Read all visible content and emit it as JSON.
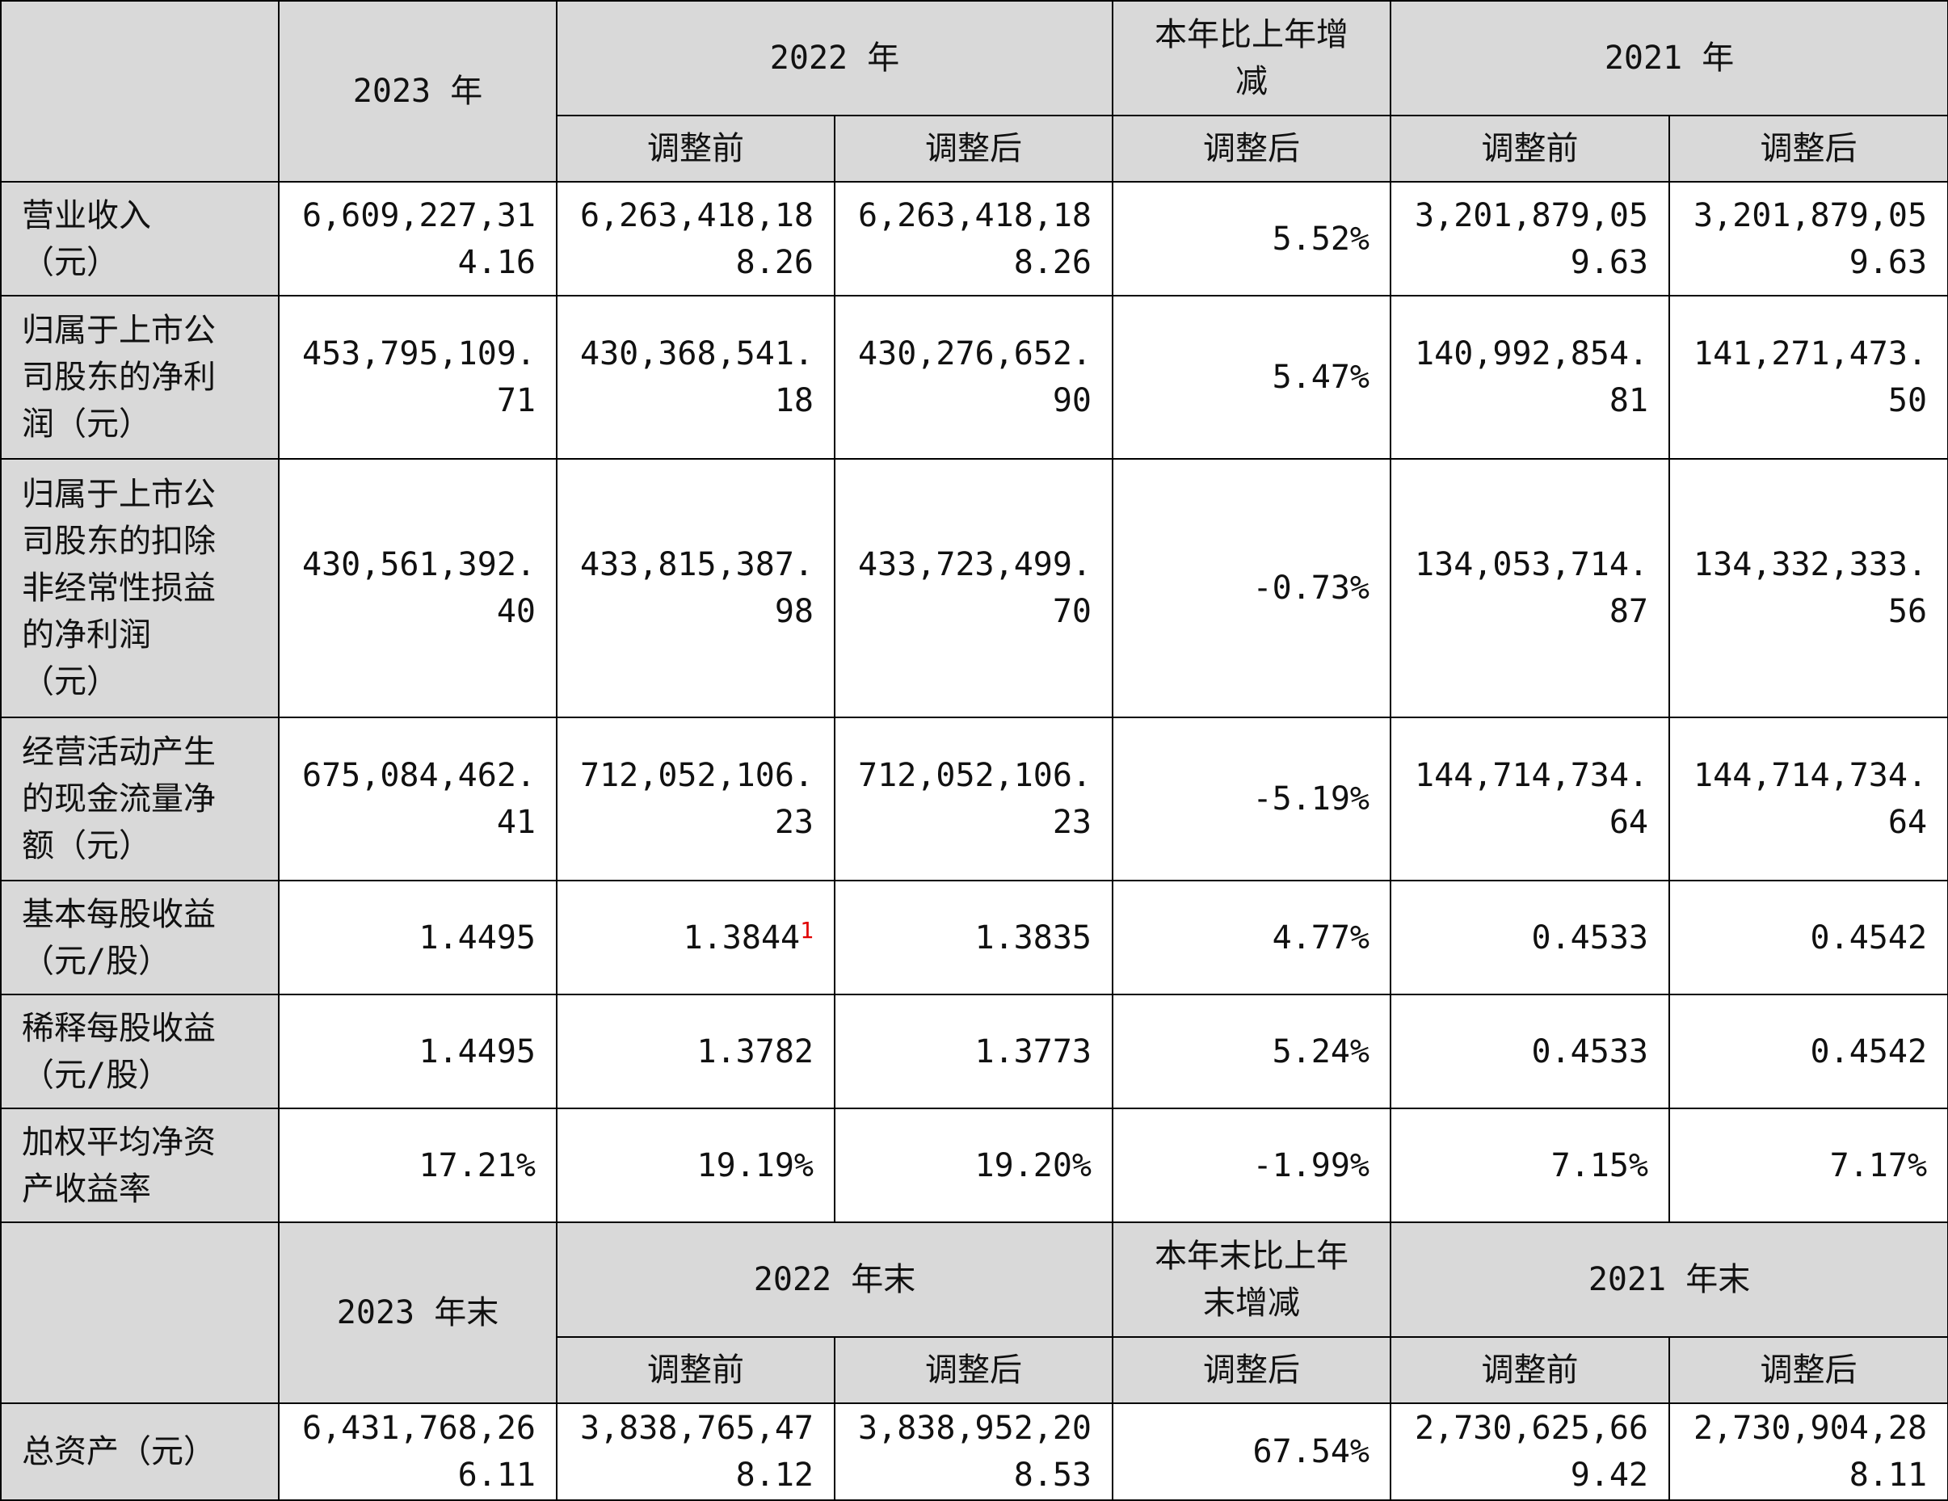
{
  "header_top": {
    "col_2023": "2023 年",
    "col_2022": "2022 年",
    "col_change": "本年比上年增\n减",
    "col_2021": "2021 年",
    "sub_before_2022": "调整前",
    "sub_after_2022": "调整后",
    "sub_change": "调整后",
    "sub_before_2021": "调整前",
    "sub_after_2021": "调整后"
  },
  "rows": [
    {
      "label": "营业收入\n（元）",
      "v2023": "6,609,227,31\n4.16",
      "v2022_before": "6,263,418,18\n8.26",
      "v2022_after": "6,263,418,18\n8.26",
      "change": "5.52%",
      "v2021_before": "3,201,879,05\n9.63",
      "v2021_after": "3,201,879,05\n9.63"
    },
    {
      "label": "归属于上市公\n司股东的净利\n润（元）",
      "v2023": "453,795,109.\n71",
      "v2022_before": "430,368,541.\n18",
      "v2022_after": "430,276,652.\n90",
      "change": "5.47%",
      "v2021_before": "140,992,854.\n81",
      "v2021_after": "141,271,473.\n50"
    },
    {
      "label": "归属于上市公\n司股东的扣除\n非经常性损益\n的净利润\n（元）",
      "v2023": "430,561,392.\n40",
      "v2022_before": "433,815,387.\n98",
      "v2022_after": "433,723,499.\n70",
      "change": "-0.73%",
      "v2021_before": "134,053,714.\n87",
      "v2021_after": "134,332,333.\n56"
    },
    {
      "label": "经营活动产生\n的现金流量净\n额（元）",
      "v2023": "675,084,462.\n41",
      "v2022_before": "712,052,106.\n23",
      "v2022_after": "712,052,106.\n23",
      "change": "-5.19%",
      "v2021_before": "144,714,734.\n64",
      "v2021_after": "144,714,734.\n64"
    },
    {
      "label": "基本每股收益\n（元/股）",
      "v2023": "1.4495",
      "v2022_before": "1.3844",
      "v2022_before_note": "1",
      "v2022_after": "1.3835",
      "change": "4.77%",
      "v2021_before": "0.4533",
      "v2021_after": "0.4542"
    },
    {
      "label": "稀释每股收益\n（元/股）",
      "v2023": "1.4495",
      "v2022_before": "1.3782",
      "v2022_after": "1.3773",
      "change": "5.24%",
      "v2021_before": "0.4533",
      "v2021_after": "0.4542"
    },
    {
      "label": "加权平均净资\n产收益率",
      "v2023": "17.21%",
      "v2022_before": "19.19%",
      "v2022_after": "19.20%",
      "change": "-1.99%",
      "v2021_before": "7.15%",
      "v2021_after": "7.17%"
    }
  ],
  "header_bottom": {
    "col_2023": "2023 年末",
    "col_2022": "2022 年末",
    "col_change": "本年末比上年\n末增减",
    "col_2021": "2021 年末",
    "sub_before_2022": "调整前",
    "sub_after_2022": "调整后",
    "sub_change": "调整后",
    "sub_before_2021": "调整前",
    "sub_after_2021": "调整后"
  },
  "assets_row": {
    "label": "总资产（元）",
    "v2023": "6,431,768,26\n6.11",
    "v2022_before": "3,838,765,47\n8.12",
    "v2022_after": "3,838,952,20\n8.53",
    "change": "67.54%",
    "v2021_before": "2,730,625,66\n9.42",
    "v2021_after": "2,730,904,28\n8.11"
  },
  "colors": {
    "header_bg": "#d9d9d9",
    "border": "#000000",
    "note_mark": "#e00000"
  }
}
